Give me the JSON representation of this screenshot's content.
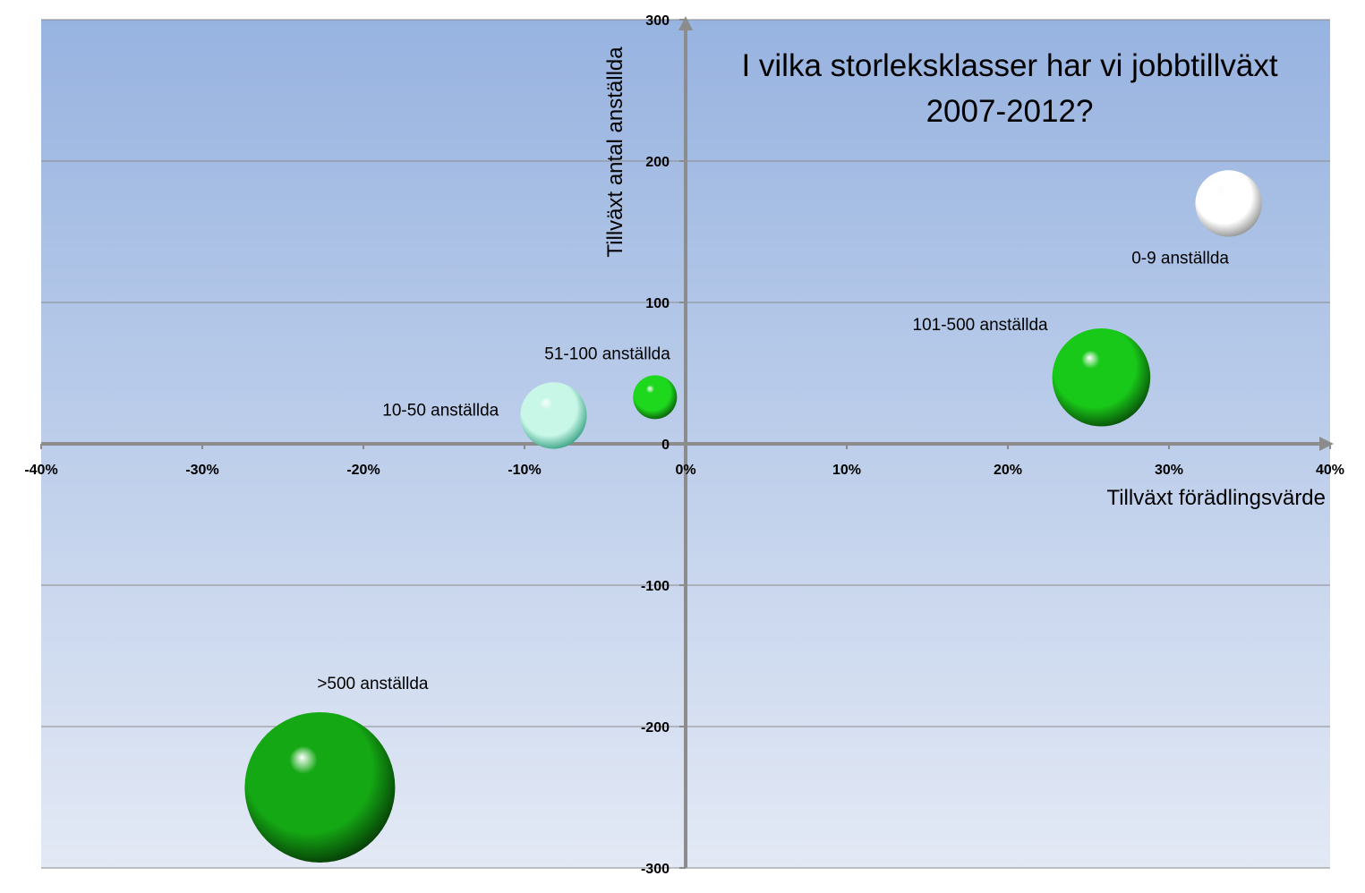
{
  "chart_data": {
    "type": "bubble",
    "title_lines": [
      "I vilka storleksklasser har vi jobbtillväxt",
      "2007-2012?"
    ],
    "xlabel": "Tillväxt förädlingsvärde",
    "ylabel": "Tillväxt antal anställda",
    "xlim": [
      -0.4,
      0.4
    ],
    "ylim": [
      -300,
      300
    ],
    "x_ticks": [
      -0.4,
      -0.3,
      -0.2,
      -0.1,
      0,
      0.1,
      0.2,
      0.3,
      0.4
    ],
    "x_tick_labels": [
      "-40%",
      "-30%",
      "-20%",
      "-10%",
      "0%",
      "10%",
      "20%",
      "30%",
      "40%"
    ],
    "y_ticks": [
      -300,
      -200,
      -100,
      0,
      100,
      200,
      300
    ],
    "y_tick_labels": [
      "-300",
      "-200",
      "-100",
      "0",
      "100",
      "200",
      "300"
    ],
    "grid": "horizontal",
    "colors": {
      "bg_top": "#97b3e0",
      "bg_bottom": "#e3e9f5",
      "axis": "#8c8c8c",
      "gridline": "#8a8a8a"
    },
    "bubbles": [
      {
        "label": "0-9 anställda",
        "x": 0.337,
        "y": 170,
        "size": 0.46,
        "color": "#ffffff",
        "shade": "#8a8a8a"
      },
      {
        "label": "10-50 anställda",
        "x": -0.082,
        "y": 20,
        "size": 0.46,
        "color": "#c8f7e8",
        "shade": "#2f9c7c"
      },
      {
        "label": "51-100 anställda",
        "x": -0.019,
        "y": 33,
        "size": 0.2,
        "color": "#1ed81e",
        "shade": "#085208"
      },
      {
        "label": "101-500 anställda",
        "x": 0.258,
        "y": 47,
        "size": 1.0,
        "color": "#19c919",
        "shade": "#074507"
      },
      {
        "label": ">500 anställda",
        "x": -0.227,
        "y": -243,
        "size": 2.35,
        "color": "#14a814",
        "shade": "#053305"
      }
    ]
  }
}
